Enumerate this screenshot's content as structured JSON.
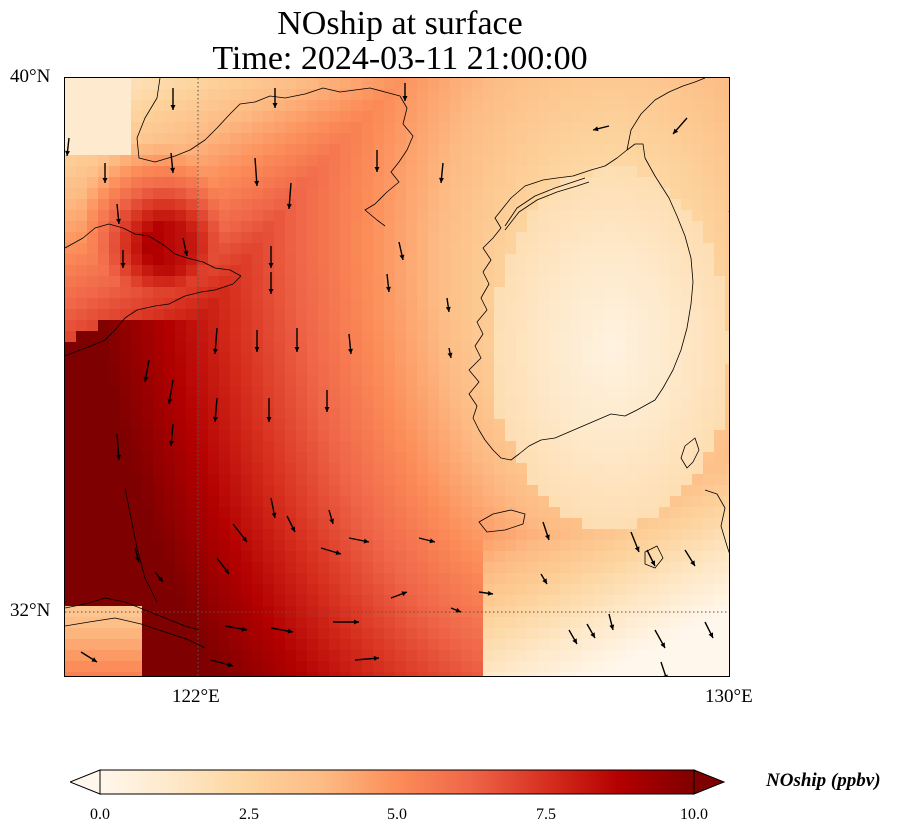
{
  "title": {
    "line1": "NOship at surface",
    "line2": "Time: 2024-03-11 21:00:00"
  },
  "axes": {
    "lat_ticks": [
      "40°N",
      "32°N"
    ],
    "lon_ticks": [
      "122°E",
      "130°E"
    ],
    "lat_range": [
      31,
      40
    ],
    "lon_range": [
      120,
      130
    ],
    "gridlines": "dotted at 122°E and 32°N"
  },
  "colorbar": {
    "label": "NOship (ppbv)",
    "ticks": [
      "0.0",
      "2.5",
      "5.0",
      "7.5",
      "10.0"
    ],
    "min": 0,
    "max": 10,
    "extend": "both",
    "colormap": "OrRd",
    "colors": [
      "#fff7ec",
      "#fee8c8",
      "#fdd49e",
      "#fdbb84",
      "#fc8d59",
      "#ef6548",
      "#d7301f",
      "#b30000",
      "#7f0000"
    ]
  },
  "field": {
    "description_units": "ppbv",
    "high_region": "Yellow Sea / East China Sea, values at or above 10",
    "low_region": "Korean Peninsula, values near 0"
  },
  "overlay": {
    "wind_vectors": "black arrows, mostly pointing south",
    "coastlines": "black outlines of China, Korea and Japan"
  }
}
